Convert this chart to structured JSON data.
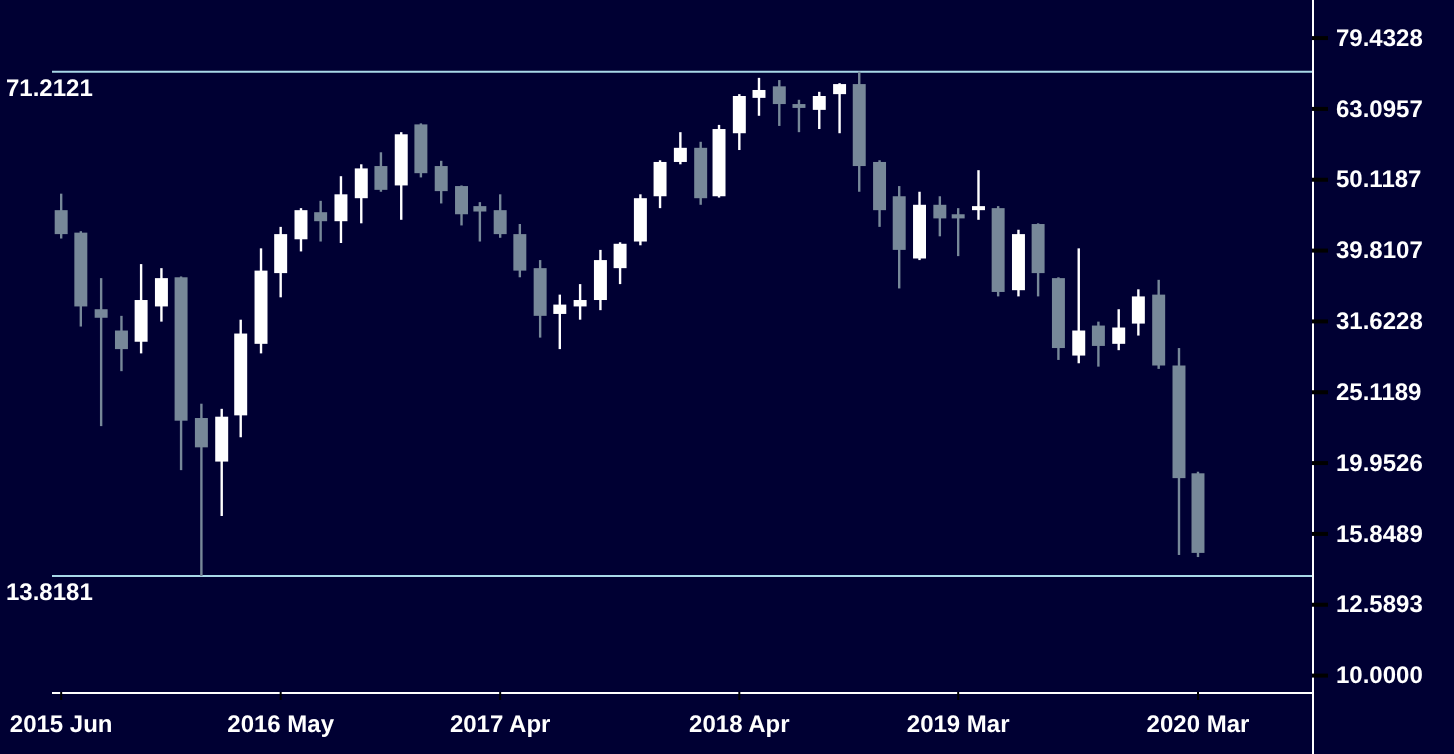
{
  "chart_data": {
    "type": "candlestick",
    "log": true,
    "x": [
      "2015-06",
      "2015-07",
      "2015-08",
      "2015-09",
      "2015-10",
      "2015-11",
      "2015-12",
      "2016-01",
      "2016-02",
      "2016-03",
      "2016-04",
      "2016-05",
      "2016-06",
      "2016-07",
      "2016-08",
      "2016-09",
      "2016-10",
      "2016-11",
      "2016-12",
      "2017-01",
      "2017-02",
      "2017-03",
      "2017-04",
      "2017-05",
      "2017-06",
      "2017-07",
      "2017-08",
      "2017-09",
      "2017-10",
      "2017-11",
      "2017-12",
      "2018-01",
      "2018-02",
      "2018-03",
      "2018-04",
      "2018-05",
      "2018-06",
      "2018-07",
      "2018-08",
      "2018-09",
      "2018-10",
      "2018-11",
      "2018-12",
      "2019-01",
      "2019-02",
      "2019-03",
      "2019-04",
      "2019-05",
      "2019-06",
      "2019-07",
      "2019-08",
      "2019-09",
      "2019-10",
      "2019-11",
      "2019-12",
      "2020-01",
      "2020-02",
      "2020-03"
    ],
    "ohlc": [
      [
        45.4,
        47.9,
        41.4,
        42.0
      ],
      [
        42.2,
        42.4,
        31.1,
        33.2
      ],
      [
        32.9,
        36.4,
        22.5,
        32.0
      ],
      [
        30.7,
        32.2,
        26.9,
        28.9
      ],
      [
        29.6,
        38.1,
        28.5,
        33.9
      ],
      [
        33.2,
        37.6,
        31.6,
        36.4
      ],
      [
        36.5,
        36.6,
        19.5,
        22.9
      ],
      [
        23.1,
        24.2,
        13.8181,
        21.0
      ],
      [
        20.05,
        23.8,
        16.8,
        23.2
      ],
      [
        23.3,
        31.8,
        21.7,
        30.4
      ],
      [
        29.4,
        40.1,
        28.5,
        37.3
      ],
      [
        37.0,
        43.0,
        34.2,
        42.0
      ],
      [
        41.3,
        45.7,
        39.7,
        45.4
      ],
      [
        45.1,
        46.8,
        41.0,
        43.8
      ],
      [
        43.8,
        50.7,
        40.8,
        47.8
      ],
      [
        47.2,
        52.7,
        43.5,
        52.0
      ],
      [
        52.4,
        54.8,
        48.2,
        48.5
      ],
      [
        49.2,
        58.5,
        44.0,
        58.1
      ],
      [
        60.0,
        60.2,
        50.5,
        51.2
      ],
      [
        52.4,
        53.3,
        46.4,
        48.3
      ],
      [
        49.1,
        49.2,
        43.2,
        44.8
      ],
      [
        46.0,
        46.6,
        41.0,
        45.2
      ],
      [
        45.4,
        47.8,
        41.5,
        42.0
      ],
      [
        42.0,
        43.4,
        36.5,
        37.3
      ],
      [
        37.6,
        38.6,
        30.0,
        32.2
      ],
      [
        32.4,
        34.5,
        28.9,
        33.4
      ],
      [
        33.2,
        35.7,
        31.8,
        33.9
      ],
      [
        33.9,
        39.9,
        32.8,
        38.6
      ],
      [
        37.6,
        40.9,
        35.7,
        40.7
      ],
      [
        41.0,
        47.8,
        40.5,
        47.2
      ],
      [
        47.5,
        53.4,
        45.7,
        53.1
      ],
      [
        53.1,
        58.5,
        52.7,
        55.6
      ],
      [
        55.6,
        56.7,
        46.2,
        47.2
      ],
      [
        47.5,
        59.9,
        47.3,
        59.1
      ],
      [
        58.3,
        66.2,
        55.2,
        65.8
      ],
      [
        65.4,
        69.8,
        61.7,
        67.1
      ],
      [
        67.9,
        69.3,
        59.7,
        64.1
      ],
      [
        64.1,
        65.0,
        58.5,
        63.3
      ],
      [
        62.9,
        66.7,
        59.1,
        65.8
      ],
      [
        66.2,
        68.6,
        58.3,
        68.4
      ],
      [
        68.4,
        71.2121,
        48.2,
        52.4
      ],
      [
        53.1,
        53.4,
        43.0,
        45.4
      ],
      [
        47.5,
        49.1,
        35.2,
        39.9
      ],
      [
        38.8,
        48.2,
        38.6,
        46.2
      ],
      [
        46.2,
        47.5,
        41.7,
        44.2
      ],
      [
        44.8,
        45.7,
        39.1,
        44.2
      ],
      [
        45.4,
        51.7,
        44.0,
        46.0
      ],
      [
        45.7,
        46.0,
        34.3,
        34.8
      ],
      [
        35.0,
        42.6,
        34.3,
        42.0
      ],
      [
        43.4,
        43.5,
        34.3,
        37.0
      ],
      [
        36.4,
        36.5,
        27.9,
        29.0
      ],
      [
        28.3,
        40.1,
        27.6,
        30.7
      ],
      [
        31.2,
        31.6,
        27.3,
        29.2
      ],
      [
        29.4,
        32.9,
        28.8,
        31.0
      ],
      [
        31.4,
        35.1,
        30.2,
        34.3
      ],
      [
        34.5,
        36.2,
        27.1,
        27.4
      ],
      [
        27.4,
        29.0,
        14.8,
        19.0
      ],
      [
        19.3,
        19.4,
        14.7,
        14.9
      ]
    ],
    "colors": [
      "#778899",
      "#778899",
      "#778899",
      "#778899",
      "#ffffff",
      "#ffffff",
      "#778899",
      "#778899",
      "#ffffff",
      "#ffffff",
      "#ffffff",
      "#ffffff",
      "#ffffff",
      "#778899",
      "#ffffff",
      "#ffffff",
      "#778899",
      "#ffffff",
      "#778899",
      "#778899",
      "#778899",
      "#778899",
      "#778899",
      "#778899",
      "#778899",
      "#ffffff",
      "#ffffff",
      "#ffffff",
      "#ffffff",
      "#ffffff",
      "#ffffff",
      "#ffffff",
      "#778899",
      "#ffffff",
      "#ffffff",
      "#ffffff",
      "#778899",
      "#778899",
      "#ffffff",
      "#ffffff",
      "#778899",
      "#778899",
      "#778899",
      "#ffffff",
      "#778899",
      "#778899",
      "#ffffff",
      "#778899",
      "#ffffff",
      "#778899",
      "#778899",
      "#ffffff",
      "#778899",
      "#ffffff",
      "#ffffff",
      "#778899",
      "#778899",
      "#778899"
    ],
    "xlim": [
      "2015-05-18",
      "2020-08-22"
    ],
    "xticks": [
      {
        "value": "2015-06",
        "label": "2015 Jun"
      },
      {
        "value": "2016-05",
        "label": "2016 May"
      },
      {
        "value": "2017-04",
        "label": "2017 Apr"
      },
      {
        "value": "2018-04",
        "label": "2018 Apr"
      },
      {
        "value": "2019-03",
        "label": "2019 Mar"
      },
      {
        "value": "2020-03",
        "label": "2020 Mar"
      }
    ],
    "ylim": [
      9.48,
      89.9
    ],
    "yticks": [
      {
        "value": 10,
        "label": "10.0000"
      },
      {
        "value": 12.5893,
        "label": "12.5893"
      },
      {
        "value": 15.8489,
        "label": "15.8489"
      },
      {
        "value": 19.9526,
        "label": "19.9526"
      },
      {
        "value": 25.1189,
        "label": "25.1189"
      },
      {
        "value": 31.6228,
        "label": "31.6228"
      },
      {
        "value": 39.8107,
        "label": "39.8107"
      },
      {
        "value": 50.1187,
        "label": "50.1187"
      },
      {
        "value": 63.0957,
        "label": "63.0957"
      },
      {
        "value": 79.4328,
        "label": "79.4328"
      }
    ],
    "ref_lines": [
      {
        "axis": "y",
        "value": 71.2121,
        "label": "71.2121",
        "color": "#a8d8e8"
      },
      {
        "axis": "y",
        "value": 13.8181,
        "label": "13.8181",
        "color": "#a8d8e8"
      }
    ]
  }
}
